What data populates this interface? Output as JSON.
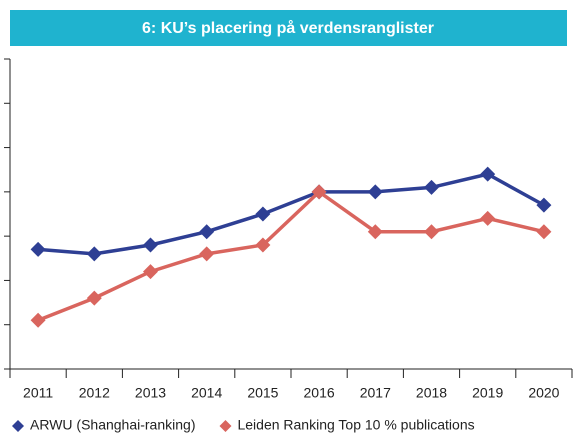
{
  "chart_data": {
    "type": "line",
    "title": "6: KU’s placering på verdensranglister",
    "categories": [
      "2011",
      "2012",
      "2013",
      "2014",
      "2015",
      "2016",
      "2017",
      "2018",
      "2019",
      "2020"
    ],
    "series": [
      {
        "name": "ARWU (Shanghai-ranking)",
        "color": "#2e3f94",
        "values": [
          2.7,
          2.6,
          2.8,
          3.1,
          3.5,
          4.0,
          4.0,
          4.1,
          4.4,
          3.7
        ]
      },
      {
        "name": "Leiden Ranking Top 10 % publications",
        "color": "#d9655e",
        "values": [
          1.1,
          1.6,
          2.2,
          2.6,
          2.8,
          4.0,
          3.1,
          3.1,
          3.4,
          3.1
        ]
      }
    ],
    "ylim": [
      0,
      7
    ],
    "yticks": [
      0,
      1,
      2,
      3,
      4,
      5,
      6,
      7
    ],
    "grid": false,
    "legend": "bottom"
  }
}
